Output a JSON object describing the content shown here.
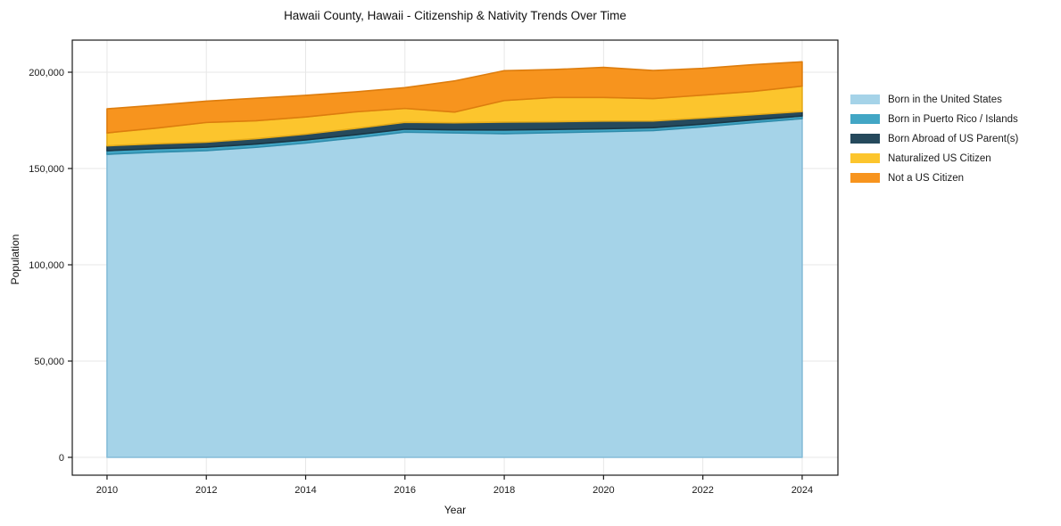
{
  "title": "Hawaii County, Hawaii - Citizenship & Nativity Trends Over Time",
  "chart_data": {
    "type": "area",
    "stacked": true,
    "title": "Hawaii County, Hawaii - Citizenship & Nativity Trends Over Time",
    "xlabel": "Year",
    "ylabel": "Population",
    "x": [
      2010,
      2011,
      2012,
      2013,
      2014,
      2015,
      2016,
      2017,
      2018,
      2019,
      2020,
      2021,
      2022,
      2023,
      2024
    ],
    "series": [
      {
        "name": "Born in the United States",
        "color": "#a5d3e8",
        "edge": "#85bcd8",
        "values": [
          157400,
          158500,
          159300,
          161000,
          163200,
          165900,
          168900,
          168500,
          168100,
          168600,
          169100,
          169700,
          171600,
          173800,
          175900
        ]
      },
      {
        "name": "Born in Puerto Rico / Islands",
        "color": "#42a6c5",
        "edge": "#2f8cab",
        "values": [
          1850,
          1800,
          1750,
          1700,
          1650,
          1600,
          1550,
          1550,
          1900,
          1700,
          1550,
          1500,
          1450,
          1400,
          1400
        ]
      },
      {
        "name": "Born Abroad of US Parent(s)",
        "color": "#25495c",
        "edge": "#1a3644",
        "values": [
          2550,
          2600,
          2650,
          2800,
          3000,
          3300,
          3550,
          3700,
          4100,
          4000,
          3950,
          3500,
          3200,
          2700,
          2300
        ]
      },
      {
        "name": "Naturalized US Citizen",
        "color": "#fcc52d",
        "edge": "#e5ab19",
        "values": [
          6700,
          8100,
          10200,
          9300,
          8900,
          8600,
          7200,
          5550,
          11200,
          12600,
          12300,
          11600,
          11850,
          12100,
          13200
        ]
      },
      {
        "name": "Not a US Citizen",
        "color": "#f7941e",
        "edge": "#dd7d0e",
        "values": [
          12500,
          11900,
          11100,
          11700,
          11250,
          10400,
          10800,
          16200,
          15500,
          14500,
          15600,
          14600,
          13900,
          13900,
          12600
        ]
      }
    ],
    "x_ticks": [
      2010,
      2012,
      2014,
      2016,
      2018,
      2020,
      2022,
      2024
    ],
    "x_tick_labels": [
      "2010",
      "2012",
      "2014",
      "2016",
      "2018",
      "2020",
      "2022",
      "2024"
    ],
    "y_ticks": [
      0,
      50000,
      100000,
      150000,
      200000
    ],
    "y_tick_labels": [
      "0",
      "50,000",
      "100,000",
      "150,000",
      "200,000"
    ],
    "xlim": [
      2009.3,
      2024.72
    ],
    "ylim": [
      -9260,
      216670
    ],
    "grid": true,
    "legend_position": "right",
    "grid_color": "#e7e7e7",
    "spine_color": "#1a1a1a",
    "tick_text_color": "#1a1a1a"
  }
}
